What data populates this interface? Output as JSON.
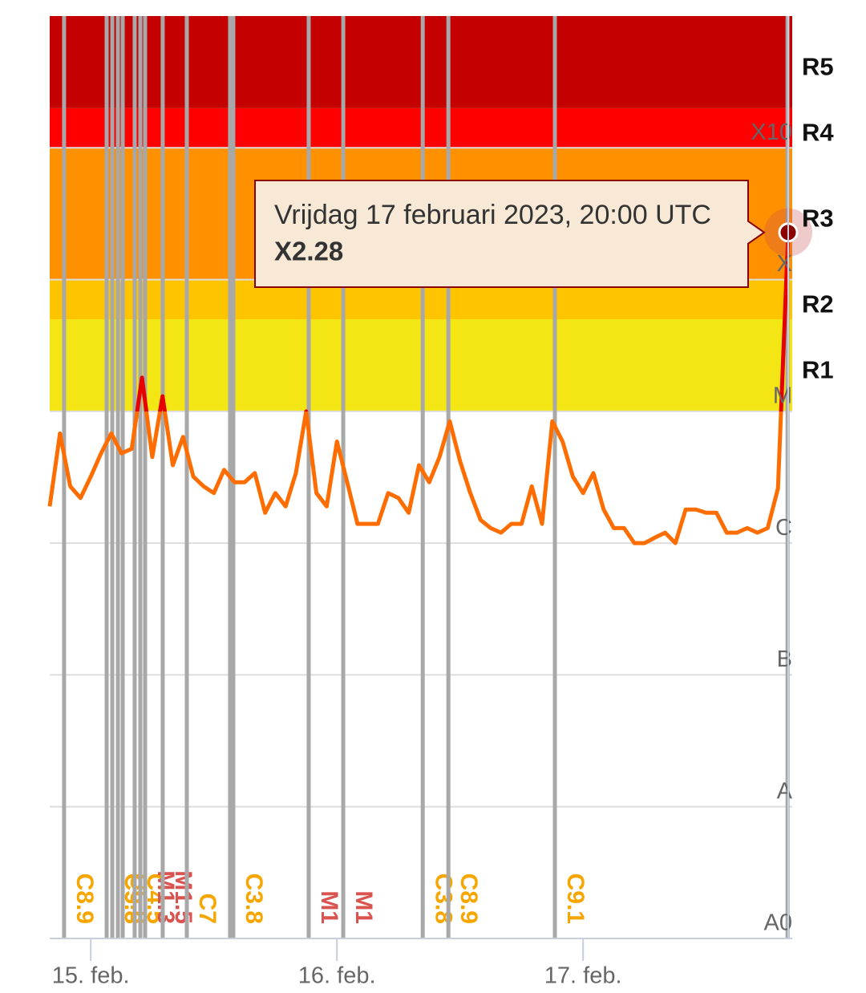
{
  "chart_data": {
    "type": "line",
    "log_scale": true,
    "ylim": [
      1e-09,
      0.01
    ],
    "yticks": [
      {
        "value": 1e-09,
        "label": "A0"
      },
      {
        "value": 1e-08,
        "label": "A"
      },
      {
        "value": 1e-07,
        "label": "B"
      },
      {
        "value": 1e-06,
        "label": "C"
      },
      {
        "value": 1e-05,
        "label": "M"
      },
      {
        "value": 0.0001,
        "label": "X"
      },
      {
        "value": 0.001,
        "label": "X10"
      }
    ],
    "xlim": [
      "2023-02-14T20:00",
      "2023-02-17T20:00"
    ],
    "xticks": [
      {
        "value": "2023-02-15T00:00",
        "label": "15. feb."
      },
      {
        "value": "2023-02-16T00:00",
        "label": "16. feb."
      },
      {
        "value": "2023-02-17T00:00",
        "label": "17. feb."
      }
    ],
    "grid": true,
    "bands": [
      {
        "label": "R1",
        "from": 1e-05,
        "to": 5e-05,
        "color": "#f4e614"
      },
      {
        "label": "R2",
        "from": 5e-05,
        "to": 0.0001,
        "color": "#ffc400"
      },
      {
        "label": "R3",
        "from": 0.0001,
        "to": 0.001,
        "color": "#ff9000"
      },
      {
        "label": "R4",
        "from": 0.001,
        "to": 0.002,
        "color": "#ff0000"
      },
      {
        "label": "R5",
        "from": 0.002,
        "to": 0.01,
        "color": "#c40000"
      }
    ],
    "x": [
      "2023-02-14T20:00",
      "2023-02-14T21:00",
      "2023-02-14T22:00",
      "2023-02-14T23:00",
      "2023-02-15T00:00",
      "2023-02-15T01:00",
      "2023-02-15T02:00",
      "2023-02-15T03:00",
      "2023-02-15T04:00",
      "2023-02-15T05:00",
      "2023-02-15T06:00",
      "2023-02-15T07:00",
      "2023-02-15T08:00",
      "2023-02-15T09:00",
      "2023-02-15T10:00",
      "2023-02-15T11:00",
      "2023-02-15T12:00",
      "2023-02-15T13:00",
      "2023-02-15T14:00",
      "2023-02-15T15:00",
      "2023-02-15T16:00",
      "2023-02-15T17:00",
      "2023-02-15T18:00",
      "2023-02-15T19:00",
      "2023-02-15T20:00",
      "2023-02-15T21:00",
      "2023-02-15T22:00",
      "2023-02-15T23:00",
      "2023-02-16T00:00",
      "2023-02-16T01:00",
      "2023-02-16T02:00",
      "2023-02-16T03:00",
      "2023-02-16T04:00",
      "2023-02-16T05:00",
      "2023-02-16T06:00",
      "2023-02-16T07:00",
      "2023-02-16T08:00",
      "2023-02-16T09:00",
      "2023-02-16T10:00",
      "2023-02-16T11:00",
      "2023-02-16T12:00",
      "2023-02-16T13:00",
      "2023-02-16T14:00",
      "2023-02-16T15:00",
      "2023-02-16T16:00",
      "2023-02-16T17:00",
      "2023-02-16T18:00",
      "2023-02-16T19:00",
      "2023-02-16T20:00",
      "2023-02-16T21:00",
      "2023-02-16T22:00",
      "2023-02-16T23:00",
      "2023-02-17T00:00",
      "2023-02-17T01:00",
      "2023-02-17T02:00",
      "2023-02-17T03:00",
      "2023-02-17T04:00",
      "2023-02-17T05:00",
      "2023-02-17T06:00",
      "2023-02-17T07:00",
      "2023-02-17T08:00",
      "2023-02-17T09:00",
      "2023-02-17T10:00",
      "2023-02-17T11:00",
      "2023-02-17T12:00",
      "2023-02-17T13:00",
      "2023-02-17T14:00",
      "2023-02-17T15:00",
      "2023-02-17T16:00",
      "2023-02-17T17:00",
      "2023-02-17T18:00",
      "2023-02-17T19:00",
      "2023-02-17T20:00"
    ],
    "series": [
      {
        "color": "#ff6d00",
        "color_high": "#e60000",
        "values": [
          1.9e-06,
          6.8e-06,
          2.7e-06,
          2.2e-06,
          3.2e-06,
          4.8e-06,
          6.8e-06,
          4.8e-06,
          5.2e-06,
          1.8e-05,
          4.5e-06,
          1.3e-05,
          3.9e-06,
          6.4e-06,
          3.2e-06,
          2.7e-06,
          2.4e-06,
          3.6e-06,
          2.9e-06,
          2.9e-06,
          3.4e-06,
          1.7e-06,
          2.4e-06,
          1.9e-06,
          3.4e-06,
          1e-05,
          2.4e-06,
          1.9e-06,
          5.9e-06,
          2.9e-06,
          1.4e-06,
          1.4e-06,
          1.4e-06,
          2.4e-06,
          2.2e-06,
          1.7e-06,
          3.9e-06,
          2.9e-06,
          4.5e-06,
          8.4e-06,
          4.2e-06,
          2.4e-06,
          1.5e-06,
          1.3e-06,
          1.2e-06,
          1.4e-06,
          1.4e-06,
          2.7e-06,
          1.4e-06,
          8.4e-06,
          5.9e-06,
          3.2e-06,
          2.4e-06,
          3.4e-06,
          1.8e-06,
          1.3e-06,
          1.3e-06,
          1e-06,
          1e-06,
          1.1e-06,
          1.2e-06,
          1e-06,
          1.8e-06,
          1.8e-06,
          1.7e-06,
          1.7e-06,
          1.2e-06,
          1.2e-06,
          1.3e-06,
          1.2e-06,
          1.3e-06,
          2.6e-06,
          0.000228
        ],
        "value_labels": [
          null,
          null,
          null,
          null,
          null,
          null,
          null,
          null,
          null,
          null,
          null,
          null,
          null,
          null,
          null,
          null,
          null,
          null,
          null,
          null,
          null,
          null,
          null,
          null,
          null,
          null,
          null,
          null,
          null,
          null,
          null,
          null,
          null,
          null,
          null,
          null,
          null,
          null,
          null,
          null,
          null,
          null,
          null,
          null,
          null,
          null,
          null,
          null,
          null,
          null,
          null,
          null,
          null,
          null,
          null,
          null,
          null,
          null,
          null,
          null,
          null,
          null,
          null,
          null,
          null,
          null,
          null,
          null,
          null,
          null,
          null,
          null,
          "X2.28"
        ]
      }
    ],
    "tooltip_title": "Vrijdag 17 februari 2023, 20:00 UTC",
    "flare_colors": {
      "C": "#f7a600",
      "M": "#d9534f"
    },
    "flares": {
      "x": [
        "2023-02-14T21:24",
        "2023-02-15T01:33",
        "2023-02-15T02:06",
        "2023-02-15T02:39",
        "2023-02-15T03:07",
        "2023-02-15T04:17",
        "2023-02-15T04:50",
        "2023-02-15T05:18",
        "2023-02-15T07:01",
        "2023-02-15T09:22",
        "2023-02-15T13:35",
        "2023-02-15T13:54",
        "2023-02-15T21:15",
        "2023-02-16T00:37",
        "2023-02-16T08:22",
        "2023-02-16T10:52",
        "2023-02-16T21:15",
        "2023-02-17T19:56"
      ],
      "labels": [
        "C8.9",
        null,
        "C5.8",
        "C6.8",
        null,
        "C4.5",
        null,
        "M1.3",
        "M1.5",
        "C7",
        null,
        "C3.8",
        "M1",
        "M1",
        "C3.8",
        "C8.9",
        "C9.1",
        null
      ]
    }
  }
}
